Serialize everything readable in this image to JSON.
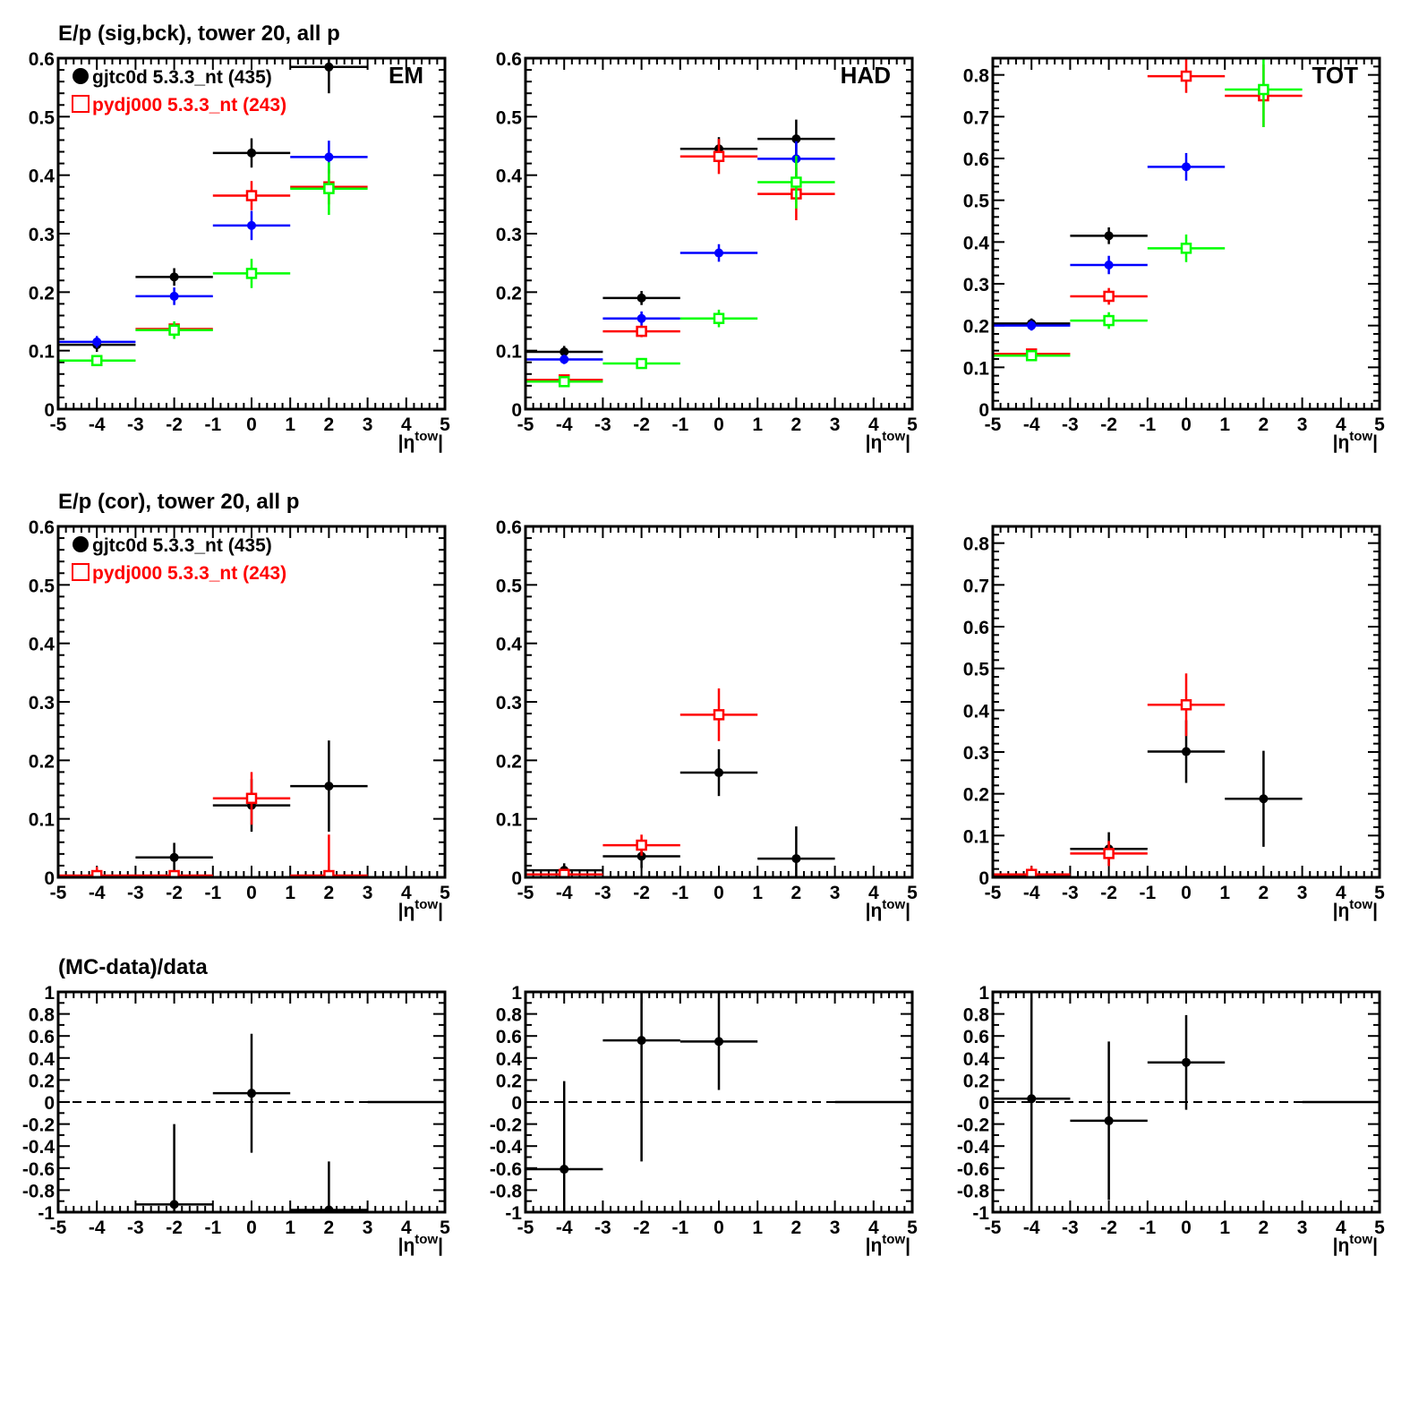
{
  "legend": [
    {
      "label": "gjtc0d 5.3.3_nt (435)",
      "color": "#000000",
      "marker": "filled-circle"
    },
    {
      "label": "pydj000 5.3.3_nt (243)",
      "color": "#ff0000",
      "marker": "open-square"
    }
  ],
  "colors": {
    "black": "#000000",
    "blue": "#0000ff",
    "red": "#ff0000",
    "green": "#00ff00"
  },
  "chart_data": [
    {
      "type": "scatter",
      "title": "E/p (sig,bck), tower 20, all p",
      "label": "EM",
      "legend": true,
      "xlabel": "|η",
      "xlabel_sup": "tow",
      "xlim": [
        -5,
        5
      ],
      "xticks": [
        -5,
        -4,
        -3,
        -2,
        -1,
        0,
        1,
        2,
        3,
        4,
        5
      ],
      "ylim": [
        0,
        0.6
      ],
      "yticks": [
        0,
        0.1,
        0.2,
        0.3,
        0.4,
        0.5,
        0.6
      ],
      "series": [
        {
          "name": "black",
          "color": "#000000",
          "marker": "circle",
          "points": [
            [
              -4,
              0.11,
              0.012
            ],
            [
              -2,
              0.226,
              0.015
            ],
            [
              0,
              0.438,
              0.025
            ],
            [
              2,
              0.585,
              0.045
            ],
            [
              4,
              0,
              0
            ]
          ]
        },
        {
          "name": "blue",
          "color": "#0000ff",
          "marker": "circle",
          "points": [
            [
              -4,
              0.115,
              0.01
            ],
            [
              -2,
              0.193,
              0.015
            ],
            [
              0,
              0.314,
              0.025
            ],
            [
              2,
              0.431,
              0.028
            ],
            [
              4,
              0,
              0
            ]
          ]
        },
        {
          "name": "red",
          "color": "#ff0000",
          "marker": "square",
          "points": [
            [
              -4,
              0.083,
              0.008
            ],
            [
              -2,
              0.137,
              0.01
            ],
            [
              0,
              0.365,
              0.025
            ],
            [
              2,
              0.38,
              0.03
            ],
            [
              4,
              0,
              0
            ]
          ]
        },
        {
          "name": "green",
          "color": "#00ff00",
          "marker": "square",
          "points": [
            [
              -4,
              0.083,
              0.008
            ],
            [
              -2,
              0.135,
              0.015
            ],
            [
              0,
              0.232,
              0.025
            ],
            [
              2,
              0.377,
              0.045
            ],
            [
              4,
              0,
              0
            ]
          ]
        }
      ]
    },
    {
      "type": "scatter",
      "title": "",
      "label": "HAD",
      "legend": false,
      "xlabel": "|η",
      "xlabel_sup": "tow",
      "xlim": [
        -5,
        5
      ],
      "xticks": [
        -5,
        -4,
        -3,
        -2,
        -1,
        0,
        1,
        2,
        3,
        4,
        5
      ],
      "ylim": [
        0,
        0.6
      ],
      "yticks": [
        0,
        0.1,
        0.2,
        0.3,
        0.4,
        0.5,
        0.6
      ],
      "series": [
        {
          "name": "black",
          "color": "#000000",
          "marker": "circle",
          "points": [
            [
              -4,
              0.098,
              0.01
            ],
            [
              -2,
              0.19,
              0.012
            ],
            [
              0,
              0.445,
              0.02
            ],
            [
              2,
              0.462,
              0.033
            ],
            [
              4,
              0,
              0
            ]
          ]
        },
        {
          "name": "blue",
          "color": "#0000ff",
          "marker": "circle",
          "points": [
            [
              -4,
              0.085,
              0.008
            ],
            [
              -2,
              0.155,
              0.012
            ],
            [
              0,
              0.267,
              0.015
            ],
            [
              2,
              0.428,
              0.03
            ],
            [
              4,
              0,
              0
            ]
          ]
        },
        {
          "name": "red",
          "color": "#ff0000",
          "marker": "square",
          "points": [
            [
              -4,
              0.05,
              0.006
            ],
            [
              -2,
              0.133,
              0.01
            ],
            [
              0,
              0.432,
              0.03
            ],
            [
              2,
              0.368,
              0.045
            ],
            [
              4,
              0,
              0
            ]
          ]
        },
        {
          "name": "green",
          "color": "#00ff00",
          "marker": "square",
          "points": [
            [
              -4,
              0.047,
              0.006
            ],
            [
              -2,
              0.078,
              0.006
            ],
            [
              0,
              0.155,
              0.015
            ],
            [
              2,
              0.388,
              0.045
            ],
            [
              4,
              0,
              0
            ]
          ]
        }
      ]
    },
    {
      "type": "scatter",
      "title": "",
      "label": "TOT",
      "legend": false,
      "xlabel": "|η",
      "xlabel_sup": "tow",
      "xlim": [
        -5,
        5
      ],
      "xticks": [
        -5,
        -4,
        -3,
        -2,
        -1,
        0,
        1,
        2,
        3,
        4,
        5
      ],
      "ylim": [
        0,
        0.84
      ],
      "yticks": [
        0,
        0.1,
        0.2,
        0.3,
        0.4,
        0.5,
        0.6,
        0.7,
        0.8
      ],
      "series": [
        {
          "name": "black",
          "color": "#000000",
          "marker": "circle",
          "points": [
            [
              -4,
              0.205,
              0.012
            ],
            [
              -2,
              0.415,
              0.02
            ],
            [
              4,
              0,
              0
            ]
          ]
        },
        {
          "name": "blue",
          "color": "#0000ff",
          "marker": "circle",
          "points": [
            [
              -4,
              0.2,
              0.012
            ],
            [
              -2,
              0.345,
              0.022
            ],
            [
              0,
              0.58,
              0.033
            ],
            [
              4,
              0,
              0
            ]
          ]
        },
        {
          "name": "red",
          "color": "#ff0000",
          "marker": "square",
          "points": [
            [
              -4,
              0.132,
              0.01
            ],
            [
              -2,
              0.27,
              0.02
            ],
            [
              0,
              0.797,
              0.04
            ],
            [
              2,
              0.75,
              0.075
            ],
            [
              4,
              0,
              0
            ]
          ]
        },
        {
          "name": "green",
          "color": "#00ff00",
          "marker": "square",
          "points": [
            [
              -4,
              0.128,
              0.01
            ],
            [
              -2,
              0.212,
              0.02
            ],
            [
              0,
              0.385,
              0.033
            ],
            [
              2,
              0.765,
              0.09
            ],
            [
              4,
              0,
              0
            ]
          ]
        }
      ]
    },
    {
      "type": "scatter",
      "title": "E/p (cor), tower 20, all p",
      "label": "",
      "legend": true,
      "xlabel": "|η",
      "xlabel_sup": "tow",
      "xlim": [
        -5,
        5
      ],
      "xticks": [
        -5,
        -4,
        -3,
        -2,
        -1,
        0,
        1,
        2,
        3,
        4,
        5
      ],
      "ylim": [
        0,
        0.6
      ],
      "yticks": [
        0,
        0.1,
        0.2,
        0.3,
        0.4,
        0.5,
        0.6
      ],
      "series": [
        {
          "name": "black",
          "color": "#000000",
          "marker": "circle",
          "points": [
            [
              -2,
              0.034,
              0.025
            ],
            [
              0,
              0.123,
              0.045
            ],
            [
              2,
              0.156,
              0.078
            ],
            [
              4,
              0,
              0
            ]
          ]
        },
        {
          "name": "red",
          "color": "#ff0000",
          "marker": "square",
          "points": [
            [
              -4,
              0.003,
              0.015
            ],
            [
              -2,
              0.003,
              0.008
            ],
            [
              0,
              0.135,
              0.045
            ],
            [
              2,
              0.003,
              0.07
            ],
            [
              4,
              0,
              0
            ]
          ]
        }
      ]
    },
    {
      "type": "scatter",
      "title": "",
      "label": "",
      "legend": false,
      "xlabel": "|η",
      "xlabel_sup": "tow",
      "xlim": [
        -5,
        5
      ],
      "xticks": [
        -5,
        -4,
        -3,
        -2,
        -1,
        0,
        1,
        2,
        3,
        4,
        5
      ],
      "ylim": [
        0,
        0.6
      ],
      "yticks": [
        0,
        0.1,
        0.2,
        0.3,
        0.4,
        0.5,
        0.6
      ],
      "series": [
        {
          "name": "black",
          "color": "#000000",
          "marker": "circle",
          "points": [
            [
              -4,
              0.012,
              0.012
            ],
            [
              -2,
              0.036,
              0.02
            ],
            [
              0,
              0.179,
              0.04
            ],
            [
              2,
              0.032,
              0.055
            ],
            [
              4,
              0,
              0
            ]
          ]
        },
        {
          "name": "red",
          "color": "#ff0000",
          "marker": "square",
          "points": [
            [
              -4,
              0.005,
              0.008
            ],
            [
              -2,
              0.055,
              0.018
            ],
            [
              0,
              0.278,
              0.045
            ],
            [
              4,
              0,
              0
            ]
          ]
        }
      ]
    },
    {
      "type": "scatter",
      "title": "",
      "label": "",
      "legend": false,
      "xlabel": "|η",
      "xlabel_sup": "tow",
      "xlim": [
        -5,
        5
      ],
      "xticks": [
        -5,
        -4,
        -3,
        -2,
        -1,
        0,
        1,
        2,
        3,
        4,
        5
      ],
      "ylim": [
        0,
        0.84
      ],
      "yticks": [
        0,
        0.1,
        0.2,
        0.3,
        0.4,
        0.5,
        0.6,
        0.7,
        0.8
      ],
      "series": [
        {
          "name": "black",
          "color": "#000000",
          "marker": "circle",
          "points": [
            [
              -4,
              0.005,
              0.01
            ],
            [
              -2,
              0.068,
              0.04
            ],
            [
              0,
              0.301,
              0.075
            ],
            [
              2,
              0.188,
              0.115
            ],
            [
              4,
              0,
              0
            ]
          ]
        },
        {
          "name": "red",
          "color": "#ff0000",
          "marker": "square",
          "points": [
            [
              -4,
              0.007,
              0.02
            ],
            [
              -2,
              0.057,
              0.03
            ],
            [
              0,
              0.413,
              0.075
            ],
            [
              4,
              0,
              0
            ]
          ]
        }
      ]
    },
    {
      "type": "scatter",
      "title": "(MC-data)/data",
      "label": "",
      "legend": false,
      "zero_line": true,
      "xlabel": "|η",
      "xlabel_sup": "tow",
      "xlim": [
        -5,
        5
      ],
      "xticks": [
        -5,
        -4,
        -3,
        -2,
        -1,
        0,
        1,
        2,
        3,
        4,
        5
      ],
      "ylim": [
        -1,
        1
      ],
      "yticks": [
        -1,
        -0.8,
        -0.6,
        -0.4,
        -0.2,
        0,
        0.2,
        0.4,
        0.6,
        0.8,
        1
      ],
      "series": [
        {
          "name": "ratio",
          "color": "#000000",
          "marker": "circle",
          "points": [
            [
              -2,
              -0.93,
              0.73
            ],
            [
              0,
              0.08,
              0.54
            ],
            [
              2,
              -0.98,
              0.44
            ],
            [
              4,
              0,
              0
            ]
          ]
        }
      ]
    },
    {
      "type": "scatter",
      "title": "",
      "label": "",
      "legend": false,
      "zero_line": true,
      "xlabel": "|η",
      "xlabel_sup": "tow",
      "xlim": [
        -5,
        5
      ],
      "xticks": [
        -5,
        -4,
        -3,
        -2,
        -1,
        0,
        1,
        2,
        3,
        4,
        5
      ],
      "ylim": [
        -1,
        1
      ],
      "yticks": [
        -1,
        -0.8,
        -0.6,
        -0.4,
        -0.2,
        0,
        0.2,
        0.4,
        0.6,
        0.8,
        1
      ],
      "series": [
        {
          "name": "ratio",
          "color": "#000000",
          "marker": "circle",
          "points": [
            [
              -4,
              -0.61,
              0.8
            ],
            [
              -2,
              0.56,
              1.1
            ],
            [
              0,
              0.55,
              0.44
            ],
            [
              4,
              0,
              0
            ]
          ]
        }
      ]
    },
    {
      "type": "scatter",
      "title": "",
      "label": "",
      "legend": false,
      "zero_line": true,
      "xlabel": "|η",
      "xlabel_sup": "tow",
      "xlim": [
        -5,
        5
      ],
      "xticks": [
        -5,
        -4,
        -3,
        -2,
        -1,
        0,
        1,
        2,
        3,
        4,
        5
      ],
      "ylim": [
        -1,
        1
      ],
      "yticks": [
        -1,
        -0.8,
        -0.6,
        -0.4,
        -0.2,
        0,
        0.2,
        0.4,
        0.6,
        0.8,
        1
      ],
      "series": [
        {
          "name": "ratio",
          "color": "#000000",
          "marker": "circle",
          "points": [
            [
              -4,
              0.03,
              1.05
            ],
            [
              -2,
              -0.17,
              0.72
            ],
            [
              0,
              0.36,
              0.43
            ],
            [
              4,
              0,
              0
            ]
          ]
        }
      ]
    }
  ]
}
